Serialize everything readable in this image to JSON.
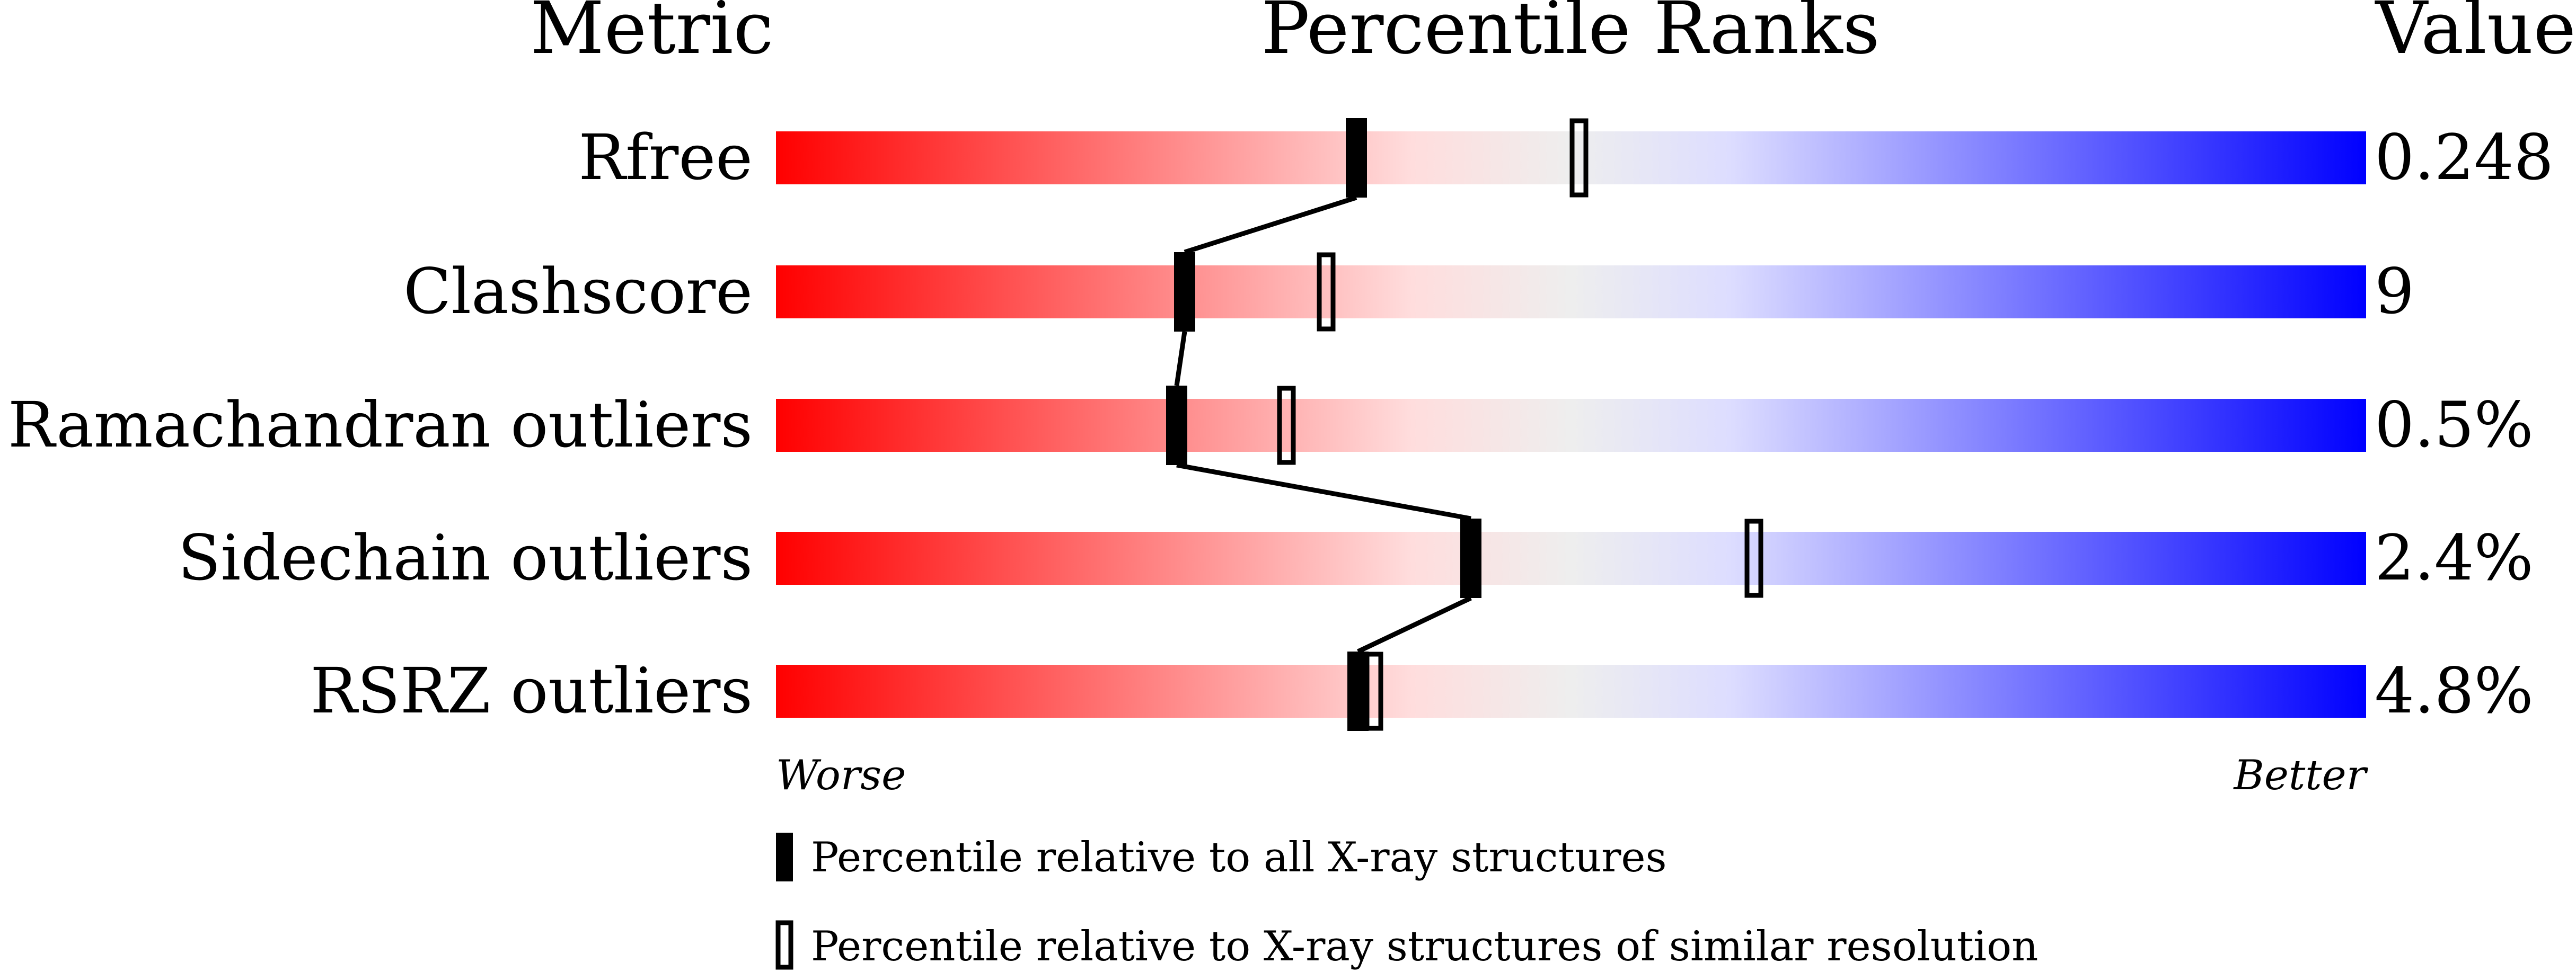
{
  "chart_data": {
    "type": "percentile-slider",
    "headers": {
      "metric": "Metric",
      "ranks": "Percentile Ranks",
      "value": "Value"
    },
    "xlim": [
      0,
      100
    ],
    "axis_labels": {
      "worse": "Worse",
      "better": "Better"
    },
    "gradient_colors": [
      "#ff0000",
      "#ffdddd",
      "#eeeeee",
      "#ddddff",
      "#0000ff"
    ],
    "rows": [
      {
        "metric": "Rfree",
        "value": "0.248",
        "percentile_all": 36.5,
        "percentile_similar": 50.5
      },
      {
        "metric": "Clashscore",
        "value": "9",
        "percentile_all": 25.7,
        "percentile_similar": 34.6
      },
      {
        "metric": "Ramachandran outliers",
        "value": "0.5%",
        "percentile_all": 25.2,
        "percentile_similar": 32.1
      },
      {
        "metric": "Sidechain outliers",
        "value": "2.4%",
        "percentile_all": 43.7,
        "percentile_similar": 61.5
      },
      {
        "metric": "RSRZ outliers",
        "value": "4.8%",
        "percentile_all": 36.6,
        "percentile_similar": 37.6
      }
    ],
    "legend": {
      "all": "Percentile relative to all X-ray structures",
      "similar": "Percentile relative to X-ray structures of similar resolution"
    }
  }
}
